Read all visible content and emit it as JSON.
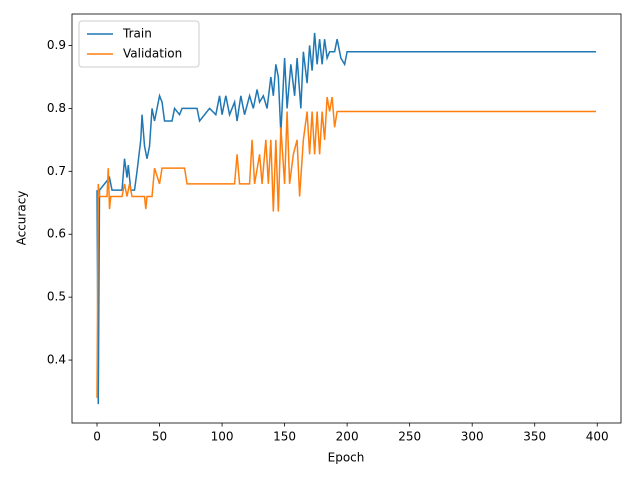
{
  "chart_data": {
    "type": "line",
    "xlabel": "Epoch",
    "ylabel": "Accuracy",
    "xlim": [
      -20,
      419
    ],
    "ylim": [
      0.3,
      0.95
    ],
    "xticks": [
      0,
      50,
      100,
      150,
      200,
      250,
      300,
      350,
      400
    ],
    "yticks": [
      0.4,
      0.5,
      0.6,
      0.7,
      0.8,
      0.9
    ],
    "grid": false,
    "legend": "upper left",
    "series": [
      {
        "name": "Train",
        "color": "#1f77b4",
        "x": [
          0,
          1,
          2,
          10,
          12,
          20,
          22,
          24,
          25,
          27,
          30,
          32,
          35,
          36,
          38,
          40,
          42,
          44,
          46,
          48,
          50,
          52,
          54,
          60,
          62,
          66,
          68,
          80,
          82,
          90,
          95,
          98,
          100,
          103,
          106,
          110,
          112,
          115,
          118,
          122,
          125,
          128,
          130,
          133,
          136,
          139,
          141,
          143,
          145,
          147,
          150,
          152,
          155,
          158,
          160,
          163,
          165,
          168,
          170,
          172,
          174,
          176,
          178,
          180,
          182,
          184,
          186,
          190,
          192,
          195,
          198,
          200,
          399
        ],
        "values": [
          0.67,
          0.33,
          0.67,
          0.69,
          0.67,
          0.67,
          0.72,
          0.69,
          0.71,
          0.67,
          0.67,
          0.7,
          0.75,
          0.79,
          0.74,
          0.72,
          0.74,
          0.8,
          0.78,
          0.8,
          0.82,
          0.81,
          0.78,
          0.78,
          0.8,
          0.79,
          0.8,
          0.8,
          0.78,
          0.8,
          0.79,
          0.82,
          0.79,
          0.82,
          0.79,
          0.81,
          0.78,
          0.82,
          0.79,
          0.82,
          0.8,
          0.83,
          0.81,
          0.82,
          0.8,
          0.85,
          0.82,
          0.87,
          0.85,
          0.76,
          0.88,
          0.8,
          0.87,
          0.82,
          0.88,
          0.8,
          0.89,
          0.84,
          0.9,
          0.86,
          0.92,
          0.87,
          0.91,
          0.87,
          0.91,
          0.88,
          0.89,
          0.89,
          0.91,
          0.88,
          0.87,
          0.89,
          0.89
        ]
      },
      {
        "name": "Validation",
        "color": "#ff7f0e",
        "x": [
          0,
          1,
          2,
          8,
          9,
          10,
          11,
          20,
          22,
          24,
          26,
          28,
          38,
          39,
          40,
          44,
          46,
          50,
          52,
          70,
          72,
          110,
          112,
          114,
          122,
          124,
          126,
          130,
          132,
          135,
          137,
          139,
          141,
          143,
          145,
          147,
          150,
          152,
          154,
          157,
          160,
          162,
          165,
          168,
          170,
          172,
          174,
          176,
          178,
          180,
          182,
          184,
          186,
          188,
          190,
          192,
          399
        ],
        "values": [
          0.34,
          0.68,
          0.66,
          0.66,
          0.705,
          0.64,
          0.66,
          0.66,
          0.68,
          0.66,
          0.68,
          0.66,
          0.66,
          0.64,
          0.66,
          0.66,
          0.705,
          0.68,
          0.705,
          0.705,
          0.68,
          0.68,
          0.727,
          0.68,
          0.68,
          0.75,
          0.68,
          0.727,
          0.68,
          0.75,
          0.68,
          0.75,
          0.636,
          0.75,
          0.636,
          0.77,
          0.68,
          0.795,
          0.68,
          0.727,
          0.75,
          0.66,
          0.75,
          0.795,
          0.727,
          0.795,
          0.727,
          0.795,
          0.727,
          0.795,
          0.75,
          0.818,
          0.795,
          0.818,
          0.77,
          0.795,
          0.795
        ]
      }
    ]
  }
}
